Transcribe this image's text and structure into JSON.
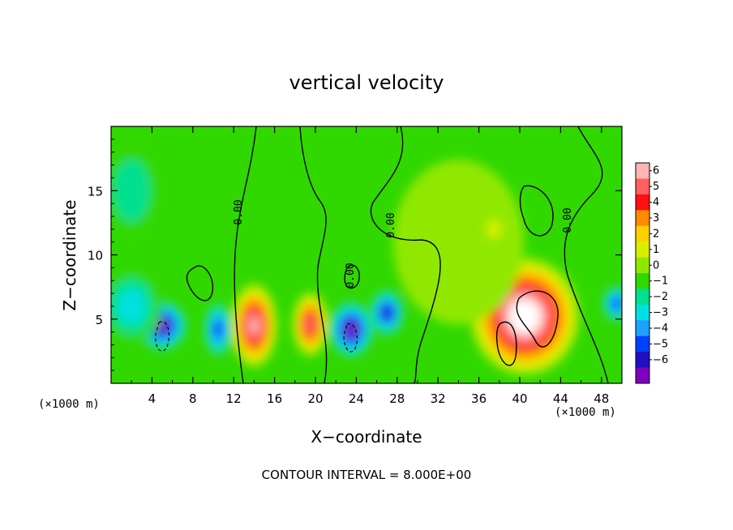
{
  "chart_data": {
    "type": "heatmap",
    "title": "vertical velocity",
    "xlabel": "X−coordinate",
    "ylabel": "Z−coordinate",
    "x_unit_label": "(×1000 m)",
    "xlim": [
      0,
      50
    ],
    "ylim": [
      0,
      20
    ],
    "xticks": [
      4,
      8,
      12,
      16,
      20,
      24,
      28,
      32,
      36,
      40,
      44,
      48
    ],
    "yticks": [
      5,
      10,
      15
    ],
    "colorbar": {
      "levels": [
        6,
        5,
        4,
        3,
        2,
        1,
        0,
        -1,
        -2,
        -3,
        -4,
        -5,
        -6
      ],
      "labels": [
        "6",
        "5",
        "4",
        "3",
        "2",
        "1",
        "0",
        "−1",
        "−2",
        "−3",
        "−4",
        "−5",
        "−6"
      ],
      "colors": [
        "#ffb4b4",
        "#ff6060",
        "#ff1010",
        "#ff8c00",
        "#ffd000",
        "#d8f000",
        "#90e800",
        "#30d800",
        "#00e090",
        "#00e0e0",
        "#20a0ff",
        "#0040ff",
        "#2010c0",
        "#8000c0"
      ]
    },
    "contour_interval": "CONTOUR INTERVAL = 8.000E+00",
    "contour_labels": [
      "0.00",
      "0.00",
      "0.00",
      "0.00"
    ],
    "features": [
      {
        "x": 5.0,
        "z": 4.5,
        "value": -7,
        "rx": 2.0,
        "rz": 1.6
      },
      {
        "x": 10.5,
        "z": 4.2,
        "value": -5,
        "rx": 1.2,
        "rz": 1.8
      },
      {
        "x": 14.0,
        "z": 4.5,
        "value": 7,
        "rx": 1.8,
        "rz": 2.6
      },
      {
        "x": 19.5,
        "z": 4.6,
        "value": 6,
        "rx": 1.4,
        "rz": 2.0
      },
      {
        "x": 23.5,
        "z": 4.2,
        "value": -7,
        "rx": 1.8,
        "rz": 1.8
      },
      {
        "x": 27.0,
        "z": 5.5,
        "value": -6,
        "rx": 1.4,
        "rz": 1.5
      },
      {
        "x": 40.5,
        "z": 5.2,
        "value": 9,
        "rx": 4.2,
        "rz": 3.6
      },
      {
        "x": 49.5,
        "z": 6.2,
        "value": -5,
        "rx": 1.2,
        "rz": 1.2
      },
      {
        "x": 2.0,
        "z": 6.0,
        "value": -3,
        "rx": 2.5,
        "rz": 2.5
      },
      {
        "x": 34.0,
        "z": 11.0,
        "value": 1.2,
        "rx": 6.0,
        "rz": 6.0
      },
      {
        "x": 37.5,
        "z": 12.0,
        "value": 2.0,
        "rx": 1.0,
        "rz": 1.0
      },
      {
        "x": 2.0,
        "z": 15.0,
        "value": -1.5,
        "rx": 3.0,
        "rz": 4.0
      }
    ]
  }
}
